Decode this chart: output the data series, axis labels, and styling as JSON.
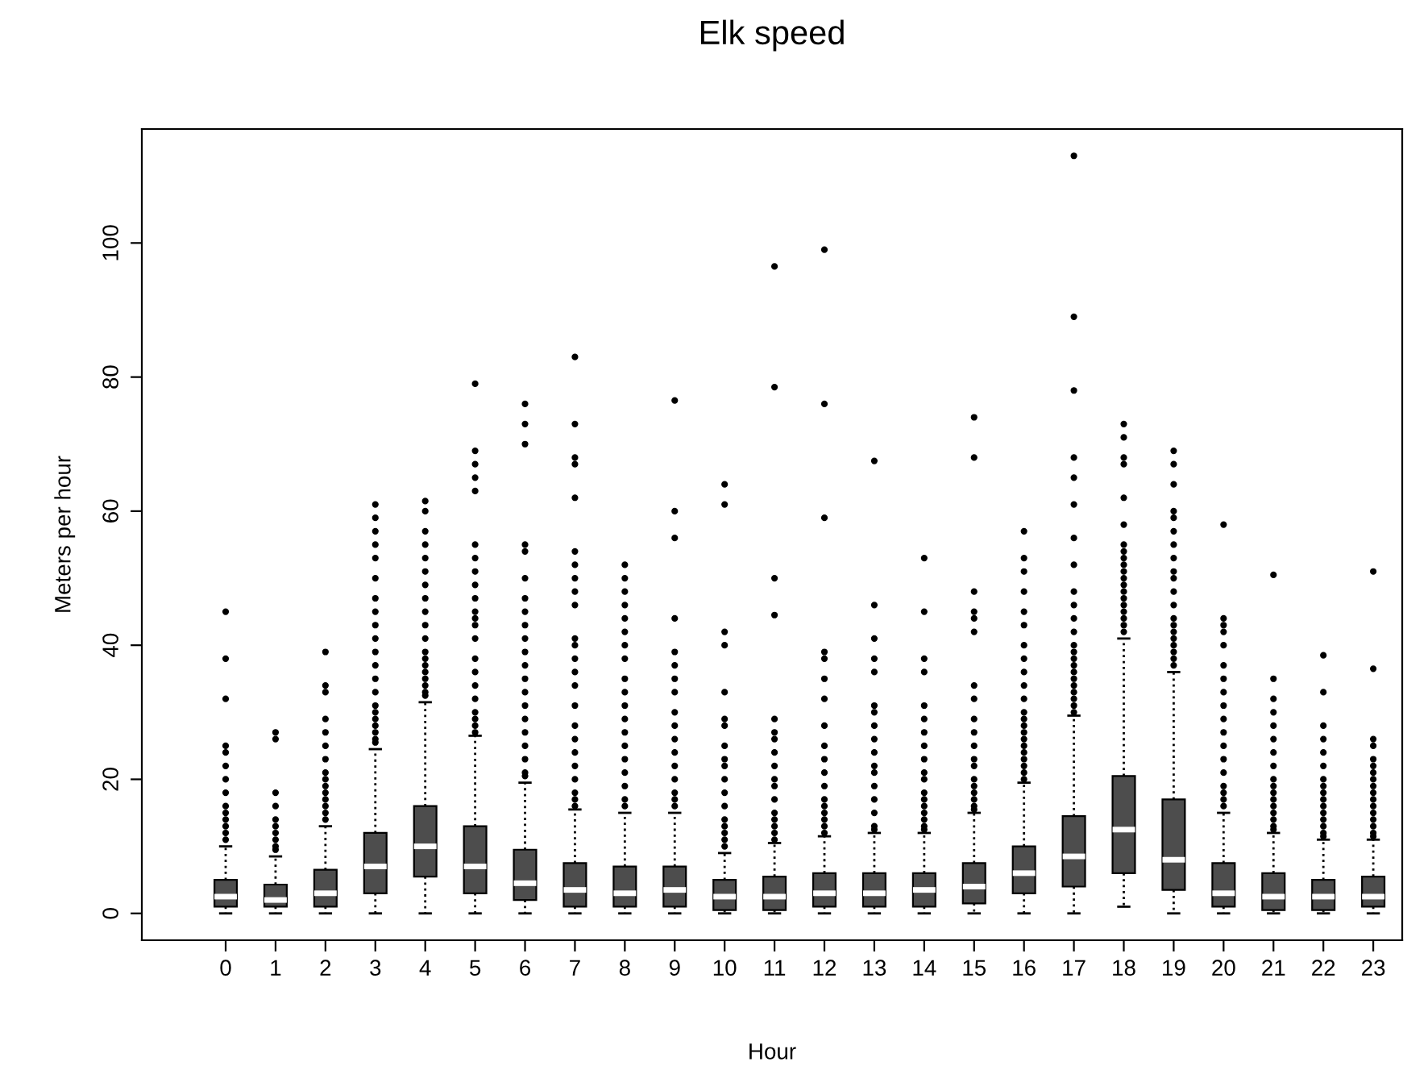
{
  "chart_data": {
    "type": "box",
    "title": "Elk speed",
    "xlabel": "Hour",
    "ylabel": "Meters per hour",
    "categories": [
      "0",
      "1",
      "2",
      "3",
      "4",
      "5",
      "6",
      "7",
      "8",
      "9",
      "10",
      "11",
      "12",
      "13",
      "14",
      "15",
      "16",
      "17",
      "18",
      "19",
      "20",
      "21",
      "22",
      "23"
    ],
    "color": "#4d4d4d",
    "ylim": [
      -4,
      117
    ],
    "yticks": [
      0,
      20,
      40,
      60,
      80,
      100
    ],
    "grid": false,
    "legend": false,
    "boxes": [
      {
        "low": 0,
        "q1": 1,
        "median": 2.5,
        "q3": 5,
        "high": 10,
        "outliers": [
          45,
          38,
          32,
          25,
          24,
          22,
          20,
          18,
          16,
          15,
          14,
          13,
          12,
          11
        ]
      },
      {
        "low": 0,
        "q1": 1,
        "median": 2,
        "q3": 4.3,
        "high": 8.5,
        "outliers": [
          27,
          26,
          18,
          16,
          14,
          13,
          12,
          11,
          10,
          9.5
        ]
      },
      {
        "low": 0,
        "q1": 1,
        "median": 3,
        "q3": 6.5,
        "high": 13,
        "outliers": [
          39,
          34,
          33,
          29,
          27,
          25,
          23,
          21,
          20,
          19,
          18,
          17,
          16,
          15,
          14
        ]
      },
      {
        "low": 0,
        "q1": 3,
        "median": 7,
        "q3": 12,
        "high": 24.5,
        "outliers": [
          61,
          59,
          57,
          55,
          53,
          50,
          47,
          45,
          43,
          41,
          39,
          37,
          35,
          33,
          31,
          30,
          29,
          28,
          27,
          26,
          25.5
        ]
      },
      {
        "low": 0,
        "q1": 5.5,
        "median": 10,
        "q3": 16,
        "high": 31.5,
        "outliers": [
          61.5,
          60,
          57,
          55,
          53,
          51,
          49,
          47,
          45,
          43,
          41,
          39,
          38,
          37,
          36,
          35,
          34,
          33,
          32.5
        ]
      },
      {
        "low": 0,
        "q1": 3,
        "median": 7,
        "q3": 13,
        "high": 26.5,
        "outliers": [
          79,
          69,
          67,
          65,
          63,
          55,
          53,
          51,
          49,
          47,
          45,
          44,
          43,
          41,
          38,
          36,
          34,
          32,
          30,
          29,
          28,
          27
        ]
      },
      {
        "low": 0,
        "q1": 2,
        "median": 4.5,
        "q3": 9.5,
        "high": 19.5,
        "outliers": [
          76,
          73,
          70,
          55,
          54,
          50,
          47,
          45,
          43,
          41,
          39,
          37,
          35,
          33,
          31,
          29,
          27,
          25,
          23,
          21,
          20.5
        ]
      },
      {
        "low": 0,
        "q1": 1,
        "median": 3.5,
        "q3": 7.5,
        "high": 15.5,
        "outliers": [
          83,
          73,
          68,
          67,
          62,
          54,
          52,
          50,
          48,
          46,
          41,
          40,
          38,
          36,
          34,
          31,
          28,
          26,
          24,
          22,
          20,
          18,
          17,
          16
        ]
      },
      {
        "low": 0,
        "q1": 1,
        "median": 3,
        "q3": 7,
        "high": 15,
        "outliers": [
          52,
          50,
          48,
          46,
          44,
          42,
          40,
          38,
          35,
          33,
          31,
          29,
          27,
          25,
          23,
          21,
          19,
          17,
          16
        ]
      },
      {
        "low": 0,
        "q1": 1,
        "median": 3.5,
        "q3": 7,
        "high": 15,
        "outliers": [
          76.5,
          60,
          56,
          44,
          39,
          37,
          35,
          33,
          30,
          28,
          26,
          24,
          22,
          20,
          18,
          17,
          16
        ]
      },
      {
        "low": 0,
        "q1": 0.5,
        "median": 2.5,
        "q3": 5,
        "high": 9,
        "outliers": [
          64,
          61,
          42,
          40,
          33,
          29,
          28,
          25,
          23,
          22,
          20,
          18,
          16,
          14,
          13,
          12,
          11,
          10
        ]
      },
      {
        "low": 0,
        "q1": 0.5,
        "median": 2.5,
        "q3": 5.5,
        "high": 10.5,
        "outliers": [
          96.5,
          78.5,
          50,
          44.5,
          29,
          27,
          26,
          24,
          22,
          20,
          19,
          17,
          15,
          14,
          13,
          12,
          11
        ]
      },
      {
        "low": 0,
        "q1": 1,
        "median": 3,
        "q3": 6,
        "high": 11.5,
        "outliers": [
          99,
          76,
          59,
          39,
          38,
          35,
          32,
          28,
          25,
          23,
          21,
          19,
          17,
          16,
          15,
          14,
          13,
          12
        ]
      },
      {
        "low": 0,
        "q1": 1,
        "median": 3,
        "q3": 6,
        "high": 12,
        "outliers": [
          67.5,
          46,
          41,
          38,
          36,
          31,
          30,
          28,
          26,
          24,
          22,
          21,
          19,
          17,
          15,
          13,
          12.5
        ]
      },
      {
        "low": 0,
        "q1": 1,
        "median": 3.5,
        "q3": 6,
        "high": 12,
        "outliers": [
          53,
          45,
          38,
          36,
          31,
          29,
          27,
          25,
          23,
          21,
          20,
          18,
          17,
          16,
          15,
          14,
          13,
          12.5
        ]
      },
      {
        "low": 0,
        "q1": 1.5,
        "median": 4,
        "q3": 7.5,
        "high": 15,
        "outliers": [
          74,
          68,
          48,
          45,
          44,
          42,
          34,
          32,
          29,
          27,
          25,
          23,
          22,
          20,
          19,
          18,
          17,
          16,
          15.5
        ]
      },
      {
        "low": 0,
        "q1": 3,
        "median": 6,
        "q3": 10,
        "high": 19.5,
        "outliers": [
          57,
          53,
          51,
          48,
          45,
          43,
          40,
          38,
          36,
          34,
          32,
          30,
          29,
          28,
          27,
          26,
          25,
          24,
          23,
          22,
          21,
          20
        ]
      },
      {
        "low": 0,
        "q1": 4,
        "median": 8.5,
        "q3": 14.5,
        "high": 29.5,
        "outliers": [
          113,
          89,
          78,
          68,
          65,
          61,
          56,
          52,
          48,
          46,
          44,
          42,
          40,
          39,
          38,
          37,
          36,
          35,
          34,
          33,
          32,
          31,
          30
        ]
      },
      {
        "low": 1,
        "q1": 6,
        "median": 12.5,
        "q3": 20.5,
        "high": 41,
        "outliers": [
          73,
          71,
          68,
          67,
          62,
          58,
          55,
          54,
          53,
          52,
          51,
          50,
          49,
          48,
          47,
          46,
          45,
          44,
          43,
          42
        ]
      },
      {
        "low": 0,
        "q1": 3.5,
        "median": 8,
        "q3": 17,
        "high": 36,
        "outliers": [
          69,
          67,
          64,
          60,
          59,
          57,
          55,
          53,
          51,
          50,
          48,
          46,
          44,
          43,
          42,
          41,
          40,
          39,
          38,
          37
        ]
      },
      {
        "low": 0,
        "q1": 1,
        "median": 3,
        "q3": 7.5,
        "high": 15,
        "outliers": [
          58,
          44,
          43,
          42,
          40,
          37,
          35,
          33,
          31,
          29,
          27,
          25,
          23,
          21,
          19,
          18,
          17,
          16
        ]
      },
      {
        "low": 0,
        "q1": 0.5,
        "median": 2.5,
        "q3": 6,
        "high": 12,
        "outliers": [
          50.5,
          35,
          32,
          30,
          28,
          26,
          24,
          22,
          20,
          19,
          18,
          17,
          16,
          15,
          14,
          13,
          12.5
        ]
      },
      {
        "low": 0,
        "q1": 0.5,
        "median": 2.5,
        "q3": 5,
        "high": 11,
        "outliers": [
          38.5,
          33,
          28,
          26,
          24,
          22,
          20,
          19,
          18,
          17,
          16,
          15,
          14,
          13,
          12,
          11.5
        ]
      },
      {
        "low": 0,
        "q1": 1,
        "median": 2.5,
        "q3": 5.5,
        "high": 11,
        "outliers": [
          51,
          36.5,
          26,
          25,
          23,
          22,
          21,
          20,
          19,
          18,
          17,
          16,
          15,
          14,
          13,
          12,
          11.5
        ]
      }
    ]
  }
}
